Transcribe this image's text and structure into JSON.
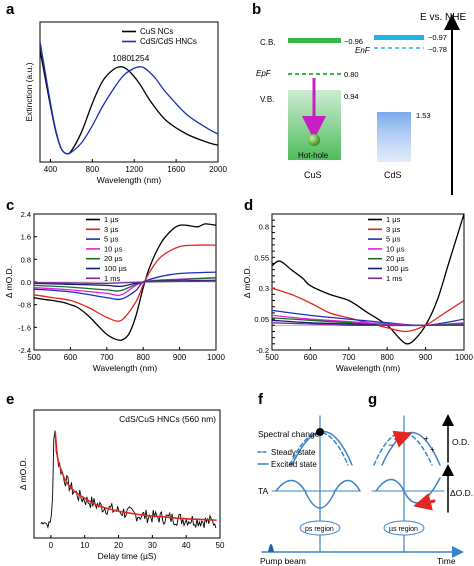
{
  "panels": {
    "a": {
      "label": "a"
    },
    "b": {
      "label": "b"
    },
    "c": {
      "label": "c"
    },
    "d": {
      "label": "d"
    },
    "e": {
      "label": "e"
    },
    "f": {
      "label": "f"
    },
    "g": {
      "label": "g"
    }
  },
  "colors": {
    "black": "#000000",
    "blue": "#1c2fb6",
    "red": "#e0261e",
    "magenta": "#e222d8",
    "darkgreen": "#1d6a2c",
    "navy": "#141a7a",
    "purple": "#7b2a96",
    "cus_green": "#3bb54a",
    "cds_cyan": "#1fb4e3",
    "hole_magenta": "#c81fc4",
    "schematic_blue": "#3a83c8"
  },
  "chart_data": [
    {
      "id": "a",
      "type": "line",
      "xlabel": "Wavelength (nm)",
      "ylabel": "Extinction (a.u.)",
      "xlim": [
        300,
        2000
      ],
      "ylim": [
        0,
        1
      ],
      "xticks": [
        400,
        800,
        1200,
        1600,
        2000
      ],
      "legend": "top-right",
      "annotations": [
        {
          "text": "1080",
          "x": 1080,
          "y": 0.72
        },
        {
          "text": "1254",
          "x": 1254,
          "y": 0.72
        }
      ],
      "series": [
        {
          "name": "CuS NCs",
          "color": "#000000",
          "x": [
            300,
            350,
            400,
            450,
            500,
            550,
            600,
            700,
            800,
            900,
            1000,
            1080,
            1150,
            1250,
            1350,
            1500,
            1700,
            1900,
            2000
          ],
          "y": [
            0.8,
            0.6,
            0.4,
            0.22,
            0.1,
            0.06,
            0.08,
            0.22,
            0.42,
            0.58,
            0.66,
            0.68,
            0.65,
            0.56,
            0.44,
            0.3,
            0.2,
            0.14,
            0.12
          ]
        },
        {
          "name": "CdS/CdS HNCs",
          "color": "#1c2fb6",
          "x": [
            300,
            350,
            400,
            450,
            500,
            550,
            600,
            700,
            800,
            900,
            1000,
            1100,
            1200,
            1254,
            1300,
            1400,
            1500,
            1700,
            1900,
            2000
          ],
          "y": [
            0.86,
            0.64,
            0.42,
            0.23,
            0.1,
            0.06,
            0.07,
            0.14,
            0.26,
            0.4,
            0.52,
            0.62,
            0.67,
            0.68,
            0.67,
            0.6,
            0.5,
            0.34,
            0.24,
            0.2
          ]
        }
      ]
    },
    {
      "id": "c",
      "type": "line",
      "xlabel": "Wavelength (nm)",
      "ylabel": "Δ mO.D.",
      "xlim": [
        500,
        1000
      ],
      "ylim": [
        -2.4,
        2.4
      ],
      "xticks": [
        500,
        600,
        700,
        800,
        900,
        1000
      ],
      "yticks": [
        -2.4,
        -1.6,
        -0.8,
        0.0,
        0.8,
        1.6,
        2.4
      ],
      "legend": "top-left",
      "series": [
        {
          "name": "1 µs",
          "color": "#000000",
          "x": [
            500,
            520,
            550,
            580,
            600,
            620,
            650,
            680,
            700,
            720,
            740,
            760,
            780,
            800,
            820,
            850,
            880,
            900,
            920,
            950,
            970,
            1000
          ],
          "y": [
            -0.55,
            -0.6,
            -0.65,
            -0.72,
            -0.8,
            -0.9,
            -1.2,
            -1.6,
            -1.85,
            -2.0,
            -2.05,
            -1.85,
            -1.2,
            -0.2,
            0.6,
            1.4,
            1.85,
            2.0,
            2.0,
            1.95,
            2.05,
            2.0
          ]
        },
        {
          "name": "3 µs",
          "color": "#e0261e",
          "x": [
            500,
            550,
            600,
            650,
            700,
            740,
            780,
            800,
            820,
            850,
            900,
            950,
            1000
          ],
          "y": [
            -0.45,
            -0.55,
            -0.65,
            -0.9,
            -1.25,
            -1.35,
            -0.7,
            -0.1,
            0.4,
            0.9,
            1.25,
            1.3,
            1.3
          ]
        },
        {
          "name": "5 µs",
          "color": "#1c2fb6",
          "x": [
            500,
            600,
            700,
            740,
            780,
            800,
            850,
            900,
            1000
          ],
          "y": [
            -0.25,
            -0.35,
            -0.55,
            -0.6,
            -0.3,
            0.0,
            0.2,
            0.3,
            0.35
          ]
        },
        {
          "name": "10 µs",
          "color": "#e222d8",
          "x": [
            500,
            600,
            700,
            740,
            800,
            900,
            1000
          ],
          "y": [
            -0.2,
            -0.28,
            -0.4,
            -0.45,
            0.0,
            0.1,
            0.15
          ]
        },
        {
          "name": "20 µs",
          "color": "#1d6a2c",
          "x": [
            500,
            600,
            700,
            740,
            800,
            900,
            1000
          ],
          "y": [
            -0.12,
            -0.18,
            -0.28,
            -0.3,
            0.0,
            0.08,
            0.15
          ]
        },
        {
          "name": "100 µs",
          "color": "#141a7a",
          "x": [
            500,
            600,
            700,
            740,
            800,
            900,
            1000
          ],
          "y": [
            -0.05,
            -0.08,
            -0.12,
            -0.15,
            0.0,
            0.04,
            0.06
          ]
        },
        {
          "name": "1 ms",
          "color": "#7b2a96",
          "x": [
            500,
            600,
            700,
            800,
            900,
            1000
          ],
          "y": [
            -0.02,
            -0.03,
            -0.05,
            0.0,
            0.02,
            0.03
          ]
        }
      ]
    },
    {
      "id": "d",
      "type": "line",
      "xlabel": "Wavelength (nm)",
      "ylabel": "Δ mO.D.",
      "xlim": [
        500,
        1000
      ],
      "ylim": [
        -0.2,
        0.9
      ],
      "xticks": [
        500,
        600,
        700,
        800,
        900,
        1000
      ],
      "yticks": [
        -0.2,
        -0.15,
        -0.1,
        -0.05,
        0.0,
        0.05,
        0.1,
        0.15,
        0.2,
        0.25,
        0.3,
        0.35,
        0.4,
        0.45,
        0.5,
        0.55,
        0.6,
        0.65,
        0.7,
        0.75,
        0.8,
        0.85,
        0.9
      ],
      "legend": "top-right",
      "series": [
        {
          "name": "1 µs",
          "color": "#000000",
          "x": [
            500,
            520,
            550,
            580,
            600,
            650,
            700,
            750,
            800,
            830,
            850,
            870,
            900,
            930,
            960,
            1000
          ],
          "y": [
            0.48,
            0.52,
            0.45,
            0.38,
            0.32,
            0.25,
            0.2,
            0.1,
            0.0,
            -0.1,
            -0.15,
            -0.12,
            0.0,
            0.2,
            0.5,
            0.9
          ]
        },
        {
          "name": "3 µs",
          "color": "#e0261e",
          "x": [
            500,
            550,
            600,
            650,
            700,
            750,
            800,
            850,
            900,
            950,
            1000
          ],
          "y": [
            0.3,
            0.25,
            0.18,
            0.1,
            0.06,
            0.02,
            -0.02,
            -0.05,
            0.0,
            0.1,
            0.2
          ]
        },
        {
          "name": "5 µs",
          "color": "#1c2fb6",
          "x": [
            500,
            600,
            700,
            800,
            900,
            1000
          ],
          "y": [
            0.12,
            0.08,
            0.05,
            0.02,
            0.0,
            0.05
          ]
        },
        {
          "name": "10 µs",
          "color": "#e222d8",
          "x": [
            500,
            600,
            700,
            800,
            900,
            1000
          ],
          "y": [
            0.08,
            0.05,
            0.03,
            0.01,
            0.0,
            0.02
          ]
        },
        {
          "name": "20 µs",
          "color": "#1d6a2c",
          "x": [
            500,
            600,
            700,
            800,
            900,
            1000
          ],
          "y": [
            0.06,
            0.04,
            0.02,
            0.0,
            0.0,
            0.01
          ]
        },
        {
          "name": "100 µs",
          "color": "#141a7a",
          "x": [
            500,
            600,
            700,
            800,
            900,
            1000
          ],
          "y": [
            0.04,
            0.02,
            0.01,
            0.0,
            0.0,
            0.0
          ]
        },
        {
          "name": "1 ms",
          "color": "#7b2a96",
          "x": [
            500,
            600,
            700,
            800,
            900,
            1000
          ],
          "y": [
            0.02,
            0.01,
            0.0,
            0.0,
            0.0,
            0.0
          ]
        }
      ]
    },
    {
      "id": "e",
      "type": "line",
      "xlabel": "Delay time (µS)",
      "ylabel": "Δ mO.D.",
      "xlim": [
        -5,
        50
      ],
      "ylim": [
        -0.1,
        0.8
      ],
      "xticks": [
        0,
        10,
        20,
        30,
        40,
        50
      ],
      "annotation": "CdS/CuS HNCs (560 nm)",
      "series": [
        {
          "name": "data",
          "color": "#000000",
          "noise": 0.06,
          "x": [
            -3,
            -2,
            -1,
            0,
            0.5,
            1,
            1.3,
            2,
            3,
            4,
            6,
            8,
            10,
            12,
            15,
            18,
            22,
            26,
            30,
            35,
            40,
            45,
            49
          ],
          "y": [
            0.0,
            0.02,
            -0.01,
            0.01,
            0.2,
            0.72,
            0.6,
            0.45,
            0.38,
            0.32,
            0.25,
            0.2,
            0.17,
            0.15,
            0.12,
            0.1,
            0.08,
            0.06,
            0.05,
            0.04,
            0.03,
            0.02,
            0.01
          ]
        },
        {
          "name": "fit",
          "color": "#e0261e",
          "x": [
            1.3,
            2,
            3,
            4,
            6,
            8,
            10,
            12,
            15,
            18,
            22,
            26,
            30,
            35,
            40,
            45,
            49
          ],
          "y": [
            0.64,
            0.46,
            0.38,
            0.32,
            0.25,
            0.21,
            0.18,
            0.15,
            0.12,
            0.1,
            0.08,
            0.065,
            0.055,
            0.045,
            0.035,
            0.03,
            0.025
          ]
        }
      ]
    }
  ],
  "diagram_b": {
    "axis_label": "E vs. NHE",
    "cb_label": "C.B.",
    "vb_label": "V.B.",
    "epf_label": "EpF",
    "enf_label": "EnF",
    "cus_cb": "−0.96",
    "cus_epf": "0.80",
    "cus_vb": "0.94",
    "cds_cb": "−0.97",
    "cds_enf": "−0.78",
    "cds_vb": "1.53",
    "hot_hole": "Hot-hole",
    "cus_label": "CuS",
    "cds_label": "CdS"
  },
  "schematic_fg": {
    "spectral_change": "Spectral change",
    "steady_state": "Steady state",
    "excited_state": "Excited state",
    "ta_label": "TA",
    "od_label": "O.D.",
    "delta_od_label": "ΔO.D.",
    "ps_region": "ps region",
    "us_region": "µs region",
    "pump_beam": "Pump beam",
    "time_label": "Time"
  }
}
